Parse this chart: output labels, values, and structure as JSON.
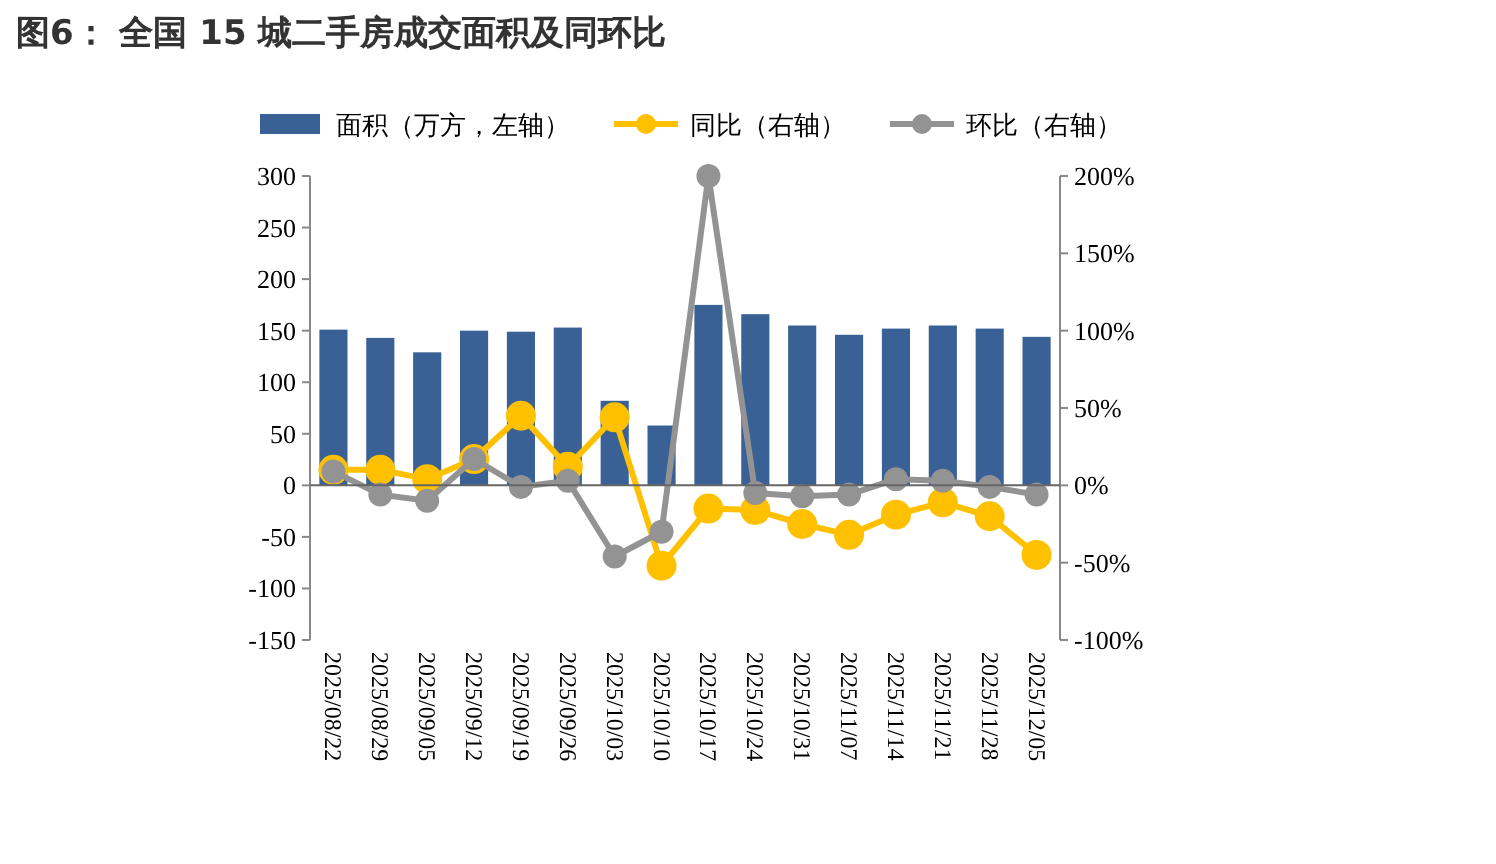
{
  "chart_data": {
    "type": "bar",
    "title": "图6：  全国 15 城二手房成交面积及同环比",
    "categories": [
      "2025/08/22",
      "2025/08/29",
      "2025/09/05",
      "2025/09/12",
      "2025/09/19",
      "2025/09/26",
      "2025/10/03",
      "2025/10/10",
      "2025/10/17",
      "2025/10/24",
      "2025/10/31",
      "2025/11/07",
      "2025/11/14",
      "2025/11/21",
      "2025/11/28",
      "2025/12/05"
    ],
    "series": [
      {
        "name": "面积（万方，左轴）",
        "color": "#3a6195",
        "values": [
          151,
          143,
          129,
          150,
          149,
          153,
          82,
          58,
          175,
          166,
          155,
          146,
          152,
          155,
          152,
          144
        ]
      },
      {
        "name": "同比（右轴）",
        "type": "line",
        "axis": "y2",
        "color": "#ffc000",
        "values": [
          10,
          10,
          4,
          17,
          45,
          12,
          44,
          -52,
          -15,
          -16,
          -25,
          -32,
          -19,
          -11,
          -20,
          -45
        ]
      },
      {
        "name": "环比（右轴）",
        "type": "line",
        "axis": "y2",
        "color": "#939393",
        "values": [
          9,
          -6,
          -10,
          17,
          -1,
          3,
          -46,
          -30,
          200,
          -5,
          -7,
          -6,
          4,
          3,
          -1,
          -6
        ]
      }
    ],
    "ylim": [
      -150,
      300
    ],
    "yticks": [
      -150,
      -100,
      -50,
      0,
      50,
      100,
      150,
      200,
      250,
      300
    ],
    "y2lim": [
      -100,
      200
    ],
    "y2ticks": [
      {
        "value": -100,
        "label": "-100%"
      },
      {
        "value": -50,
        "label": "-50%"
      },
      {
        "value": 0,
        "label": "0%"
      },
      {
        "value": 50,
        "label": "50%"
      },
      {
        "value": 100,
        "label": "100%"
      },
      {
        "value": 150,
        "label": "150%"
      },
      {
        "value": 200,
        "label": "200%"
      }
    ],
    "marker": "circle",
    "line_style": "solid",
    "legend": "top"
  }
}
